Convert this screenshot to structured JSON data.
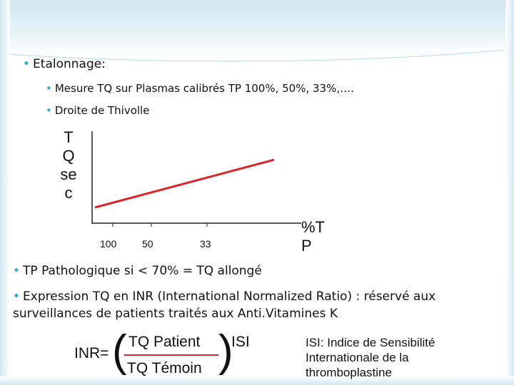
{
  "theme": {
    "accent": "#33a7c9",
    "line": "#d9262b",
    "axis": "#222222"
  },
  "bullets": {
    "etalonnage": "Etalonnage:",
    "mesure": "Mesure TQ sur Plasmas calibrés TP 100%, 50%, 33%,….",
    "droite": "Droite de Thivolle",
    "pathologique": "TP Pathologique si < 70% = TQ allongé",
    "expression_line1": "Expression TQ en INR (International Normalized Ratio) : réservé aux",
    "expression_line2": "surveillances de patients traités aux Anti.Vitamines K"
  },
  "chart_data": {
    "type": "line",
    "ylabel_lines": [
      "T",
      "Q",
      "se",
      "c"
    ],
    "xlabel_lines": [
      "%T",
      "P"
    ],
    "ticks": [
      "100",
      "50",
      "33"
    ],
    "series_color": "#d9262b"
  },
  "formula": {
    "lhs": "INR=",
    "numerator": "TQ Patient",
    "denominator": "TQ Témoin",
    "exponent": "ISI",
    "open_paren": "(",
    "close_paren": ")"
  },
  "isi_note": [
    "ISI: Indice de Sensibilité",
    "Internationale de la",
    "thromboplastine"
  ]
}
